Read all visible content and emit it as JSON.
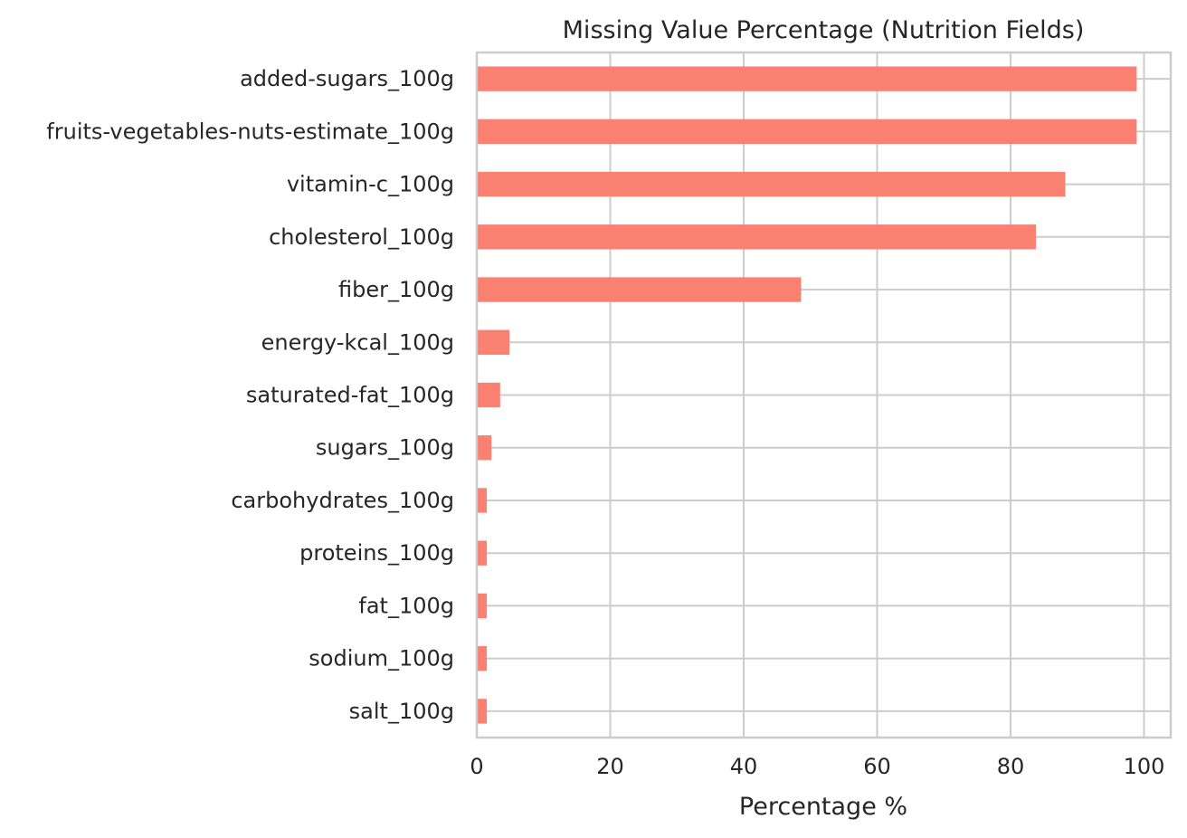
{
  "chart_data": {
    "type": "bar",
    "orientation": "horizontal",
    "title": "Missing Value Percentage (Nutrition Fields)",
    "xlabel": "Percentage %",
    "ylabel": "",
    "xlim": [
      0,
      104
    ],
    "xticks": [
      0,
      20,
      40,
      60,
      80,
      100
    ],
    "grid": true,
    "bar_color": "#fa8072",
    "grid_color": "#cccccc",
    "categories": [
      "added-sugars_100g",
      "fruits-vegetables-nuts-estimate_100g",
      "vitamin-c_100g",
      "cholesterol_100g",
      "fiber_100g",
      "energy-kcal_100g",
      "saturated-fat_100g",
      "sugars_100g",
      "carbohydrates_100g",
      "proteins_100g",
      "fat_100g",
      "sodium_100g",
      "salt_100g"
    ],
    "values": [
      98.9,
      98.9,
      88.2,
      83.8,
      48.6,
      4.9,
      3.5,
      2.2,
      1.5,
      1.5,
      1.5,
      1.5,
      1.5
    ]
  }
}
